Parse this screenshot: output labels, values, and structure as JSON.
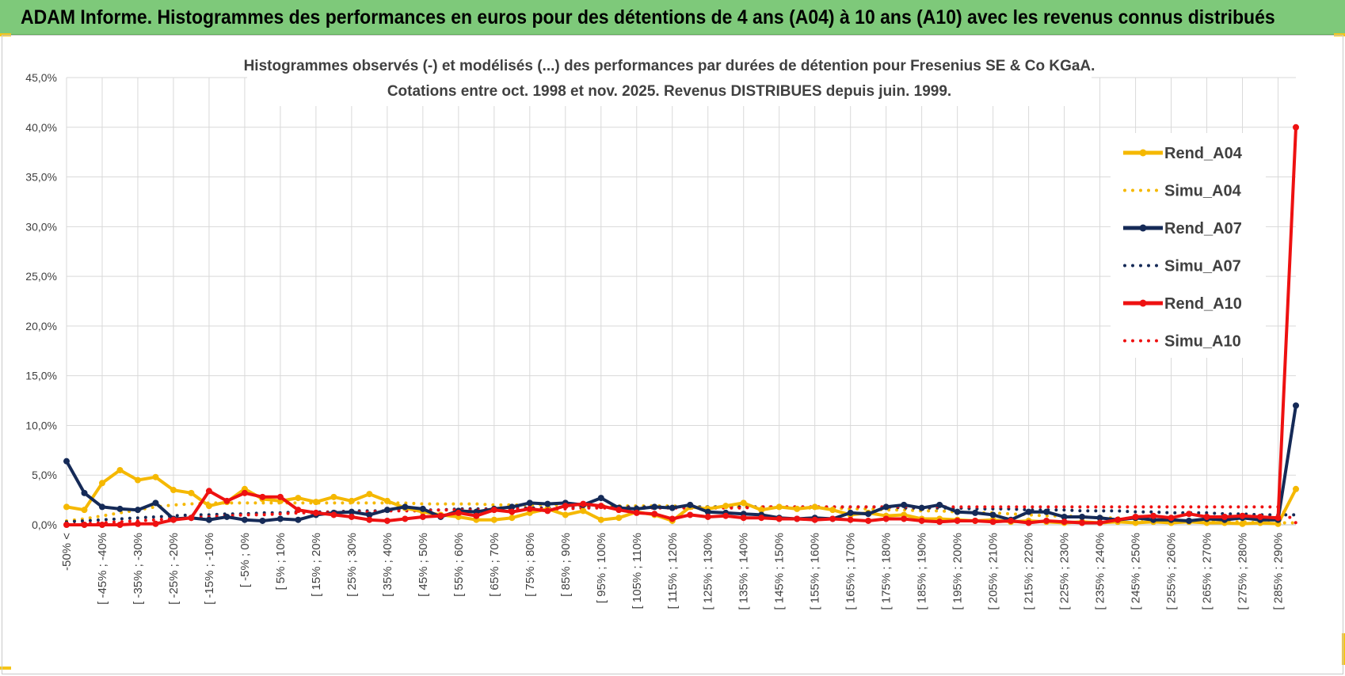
{
  "header": {
    "title": "ADAM Informe. Histogrammes des performances en euros pour des détentions de 4 ans (A04) à 10 ans (A10) avec les revenus connus distribués"
  },
  "chart_data": {
    "type": "line",
    "title_line1": "Histogrammes observés (-) et modélisés (...) des performances par durées de détention pour Fresenius SE & Co KGaA.",
    "title_line2": "Cotations entre oct. 1998 et nov. 2025.  Revenus DISTRIBUES depuis juin. 1999.",
    "ylim": [
      0,
      45
    ],
    "y_ticks": [
      "0,0%",
      "5,0%",
      "10,0%",
      "15,0%",
      "20,0%",
      "25,0%",
      "30,0%",
      "35,0%",
      "40,0%",
      "45,0%"
    ],
    "grid": true,
    "legend_position": "right",
    "x_count": 70,
    "x_tick_labels": [
      "-50% <",
      "[ -45% ; -40%",
      "[ -35% ; -30%",
      "[ -25% ; -20%",
      "[ -15% ; -10%",
      "[ -5% ; 0%",
      "[ 5% ; 10%",
      "[ 15% ; 20%",
      "[ 25% ; 30%",
      "[ 35% ; 40%",
      "[ 45% ; 50%",
      "[ 55% ; 60%",
      "[ 65% ; 70%",
      "[ 75% ; 80%",
      "[ 85% ; 90%",
      "[ 95% ; 100%",
      "[ 105% ; 110%",
      "[ 115% ; 120%",
      "[ 125% ; 130%",
      "[ 135% ; 140%",
      "[ 145% ; 150%",
      "[ 155% ; 160%",
      "[ 165% ; 170%",
      "[ 175% ; 180%",
      "[ 185% ; 190%",
      "[ 195% ; 200%",
      "[ 205% ; 210%",
      "[ 215% ; 220%",
      "[ 225% ; 230%",
      "[ 235% ; 240%",
      "[ 245% ; 250%",
      "[ 255% ; 260%",
      "[ 265% ; 270%",
      "[ 275% ; 280%",
      "[ 285% ; 290%"
    ],
    "series": [
      {
        "name": "Rend_A04",
        "style": "solid",
        "color": "#f5b800",
        "values": [
          1.8,
          1.5,
          4.2,
          5.5,
          4.5,
          4.8,
          3.5,
          3.2,
          1.9,
          2.3,
          3.6,
          2.6,
          2.4,
          2.7,
          2.3,
          2.8,
          2.4,
          3.1,
          2.4,
          1.7,
          1.3,
          1.0,
          0.8,
          0.5,
          0.5,
          0.7,
          1.2,
          1.6,
          1.0,
          1.4,
          0.5,
          0.7,
          1.3,
          1.0,
          0.4,
          1.8,
          1.6,
          1.9,
          2.2,
          1.5,
          1.8,
          1.6,
          1.8,
          1.5,
          1.0,
          1.2,
          0.9,
          1.0,
          0.6,
          0.6,
          0.5,
          0.4,
          0.5,
          0.3,
          0.4,
          0.3,
          0.2,
          0.3,
          0.2,
          0.3,
          0.2,
          0.3,
          0.2,
          0.3,
          0.2,
          0.2,
          0.1,
          0.2,
          0.1,
          3.6
        ]
      },
      {
        "name": "Simu_A04",
        "style": "dotted",
        "color": "#f5b800",
        "values": [
          0.4,
          0.6,
          0.9,
          1.2,
          1.5,
          1.8,
          2.0,
          2.1,
          2.2,
          2.2,
          2.2,
          2.2,
          2.2,
          2.2,
          2.2,
          2.2,
          2.2,
          2.2,
          2.2,
          2.2,
          2.1,
          2.1,
          2.1,
          2.1,
          2.0,
          2.0,
          2.0,
          2.0,
          2.0,
          1.9,
          1.9,
          1.9,
          1.9,
          1.9,
          1.9,
          1.8,
          1.8,
          1.8,
          1.8,
          1.8,
          1.8,
          1.7,
          1.7,
          1.7,
          1.6,
          1.6,
          1.5,
          1.5,
          1.4,
          1.4,
          1.3,
          1.2,
          1.2,
          1.1,
          1.0,
          0.9,
          0.9,
          0.8,
          0.7,
          0.7,
          0.6,
          0.5,
          0.5,
          0.4,
          0.4,
          0.3,
          0.3,
          0.2,
          0.2,
          0.2
        ]
      },
      {
        "name": "Rend_A07",
        "style": "solid",
        "color": "#152a57",
        "values": [
          6.4,
          3.2,
          1.8,
          1.6,
          1.5,
          2.2,
          0.6,
          0.7,
          0.5,
          0.8,
          0.5,
          0.4,
          0.6,
          0.5,
          1.0,
          1.2,
          1.3,
          1.0,
          1.5,
          1.8,
          1.6,
          0.8,
          1.4,
          1.3,
          1.6,
          1.8,
          2.2,
          2.1,
          2.2,
          2.0,
          2.7,
          1.7,
          1.6,
          1.8,
          1.7,
          2.0,
          1.3,
          1.2,
          1.1,
          1.0,
          0.7,
          0.6,
          0.7,
          0.6,
          1.2,
          1.1,
          1.8,
          2.0,
          1.7,
          2.0,
          1.3,
          1.2,
          1.0,
          0.5,
          1.3,
          1.3,
          0.8,
          0.8,
          0.7,
          0.5,
          0.7,
          0.5,
          0.5,
          0.4,
          0.6,
          0.5,
          0.7,
          0.5,
          0.5,
          12.0
        ]
      },
      {
        "name": "Simu_A07",
        "style": "dotted",
        "color": "#152a57",
        "values": [
          0.3,
          0.4,
          0.5,
          0.6,
          0.7,
          0.8,
          0.9,
          1.0,
          1.0,
          1.1,
          1.1,
          1.2,
          1.2,
          1.3,
          1.3,
          1.3,
          1.4,
          1.4,
          1.4,
          1.5,
          1.5,
          1.5,
          1.6,
          1.6,
          1.6,
          1.7,
          1.7,
          1.7,
          1.7,
          1.8,
          1.8,
          1.8,
          1.8,
          1.8,
          1.8,
          1.8,
          1.8,
          1.8,
          1.8,
          1.8,
          1.8,
          1.8,
          1.8,
          1.8,
          1.8,
          1.8,
          1.8,
          1.7,
          1.7,
          1.7,
          1.7,
          1.6,
          1.6,
          1.6,
          1.5,
          1.5,
          1.5,
          1.4,
          1.4,
          1.4,
          1.3,
          1.3,
          1.2,
          1.2,
          1.2,
          1.1,
          1.1,
          1.0,
          1.0,
          1.0
        ]
      },
      {
        "name": "Rend_A10",
        "style": "solid",
        "color": "#ee1111",
        "values": [
          0.0,
          0.0,
          0.0,
          0.0,
          0.1,
          0.1,
          0.5,
          0.7,
          3.4,
          2.4,
          3.2,
          2.8,
          2.8,
          1.5,
          1.2,
          1.0,
          0.8,
          0.5,
          0.4,
          0.6,
          0.8,
          0.9,
          1.2,
          0.9,
          1.5,
          1.3,
          1.6,
          1.4,
          1.9,
          2.1,
          1.9,
          1.5,
          1.2,
          1.1,
          0.6,
          1.0,
          0.8,
          0.9,
          0.7,
          0.7,
          0.6,
          0.6,
          0.5,
          0.6,
          0.5,
          0.4,
          0.6,
          0.6,
          0.4,
          0.3,
          0.4,
          0.4,
          0.3,
          0.4,
          0.2,
          0.4,
          0.3,
          0.2,
          0.2,
          0.5,
          0.8,
          0.9,
          0.7,
          1.1,
          0.8,
          0.8,
          0.9,
          0.8,
          0.7,
          40.0
        ]
      },
      {
        "name": "Simu_A10",
        "style": "dotted",
        "color": "#ee1111",
        "values": [
          0.0,
          0.1,
          0.2,
          0.3,
          0.4,
          0.5,
          0.6,
          0.7,
          0.8,
          0.9,
          1.0,
          1.0,
          1.1,
          1.2,
          1.2,
          1.3,
          1.3,
          1.3,
          1.4,
          1.4,
          1.4,
          1.5,
          1.5,
          1.5,
          1.6,
          1.6,
          1.6,
          1.6,
          1.6,
          1.7,
          1.7,
          1.7,
          1.7,
          1.7,
          1.7,
          1.7,
          1.7,
          1.7,
          1.7,
          1.8,
          1.8,
          1.8,
          1.8,
          1.8,
          1.8,
          1.8,
          1.8,
          1.8,
          1.8,
          1.8,
          1.8,
          1.8,
          1.8,
          1.8,
          1.8,
          1.8,
          1.8,
          1.8,
          1.8,
          1.8,
          1.8,
          1.8,
          1.8,
          1.8,
          1.8,
          1.8,
          1.8,
          1.8,
          1.8,
          0.2
        ]
      }
    ]
  }
}
